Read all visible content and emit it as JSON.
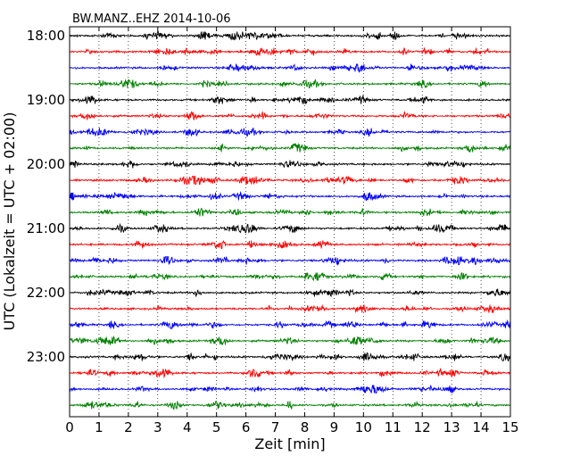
{
  "chart_data": {
    "type": "line",
    "title": "BW.MANZ..EHZ 2014-10-06",
    "xlabel": "Zeit  [min]",
    "ylabel": "UTC (Lokalzeit = UTC + 02:00)",
    "xlim": [
      0,
      15
    ],
    "xticks": [
      "0",
      "1",
      "2",
      "3",
      "4",
      "5",
      "6",
      "7",
      "8",
      "9",
      "10",
      "11",
      "12",
      "13",
      "14",
      "15"
    ],
    "ylim": [
      "17:45",
      "24:00"
    ],
    "yticks": [
      "18:00",
      "19:00",
      "20:00",
      "21:00",
      "22:00",
      "23:00"
    ],
    "grid": "vertical-dotted",
    "trace_colors": [
      "#000000",
      "#ff0000",
      "#0000ff",
      "#008000"
    ],
    "trace_interval_minutes": 15,
    "trace_count": 24,
    "trace_start_times": [
      "18:00",
      "18:15",
      "18:30",
      "18:45",
      "19:00",
      "19:15",
      "19:30",
      "19:45",
      "20:00",
      "20:15",
      "20:30",
      "20:45",
      "21:00",
      "21:15",
      "21:30",
      "21:45",
      "22:00",
      "22:15",
      "22:30",
      "22:45",
      "23:00",
      "23:15",
      "23:30",
      "23:45"
    ]
  }
}
